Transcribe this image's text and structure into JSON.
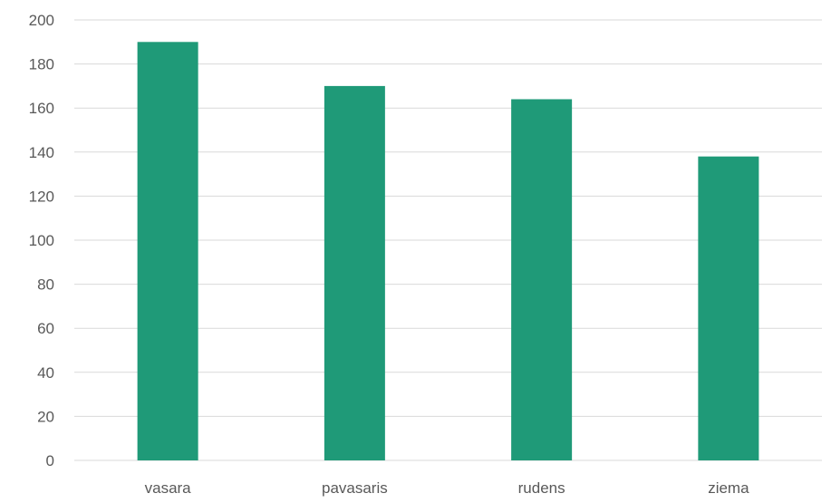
{
  "chart_data": {
    "type": "bar",
    "title": "",
    "xlabel": "",
    "ylabel": "",
    "categories": [
      "vasara",
      "pavasaris",
      "rudens",
      "ziema"
    ],
    "values": [
      190,
      170,
      164,
      138
    ],
    "ylim": [
      0,
      200
    ],
    "yticks": [
      0,
      20,
      40,
      60,
      80,
      100,
      120,
      140,
      160,
      180,
      200
    ],
    "grid": true,
    "legend": "none",
    "colors": {
      "bar": "#1f9a78",
      "grid": "#d9d9d9",
      "text": "#595959"
    }
  }
}
